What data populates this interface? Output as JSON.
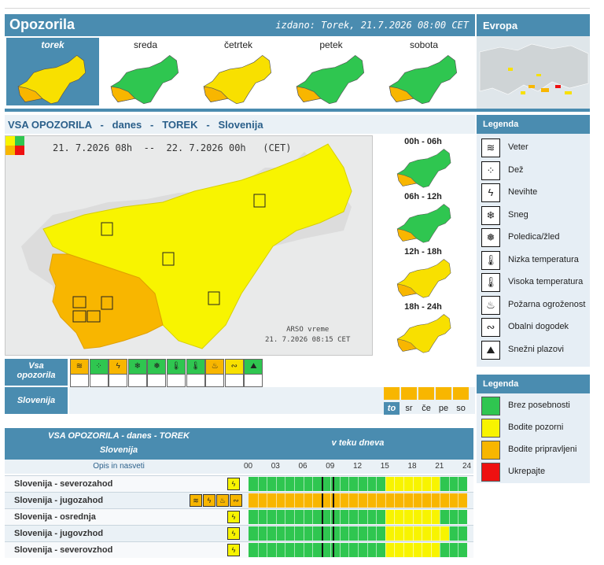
{
  "header": {
    "title": "Opozorila",
    "issued": "izdano: Torek, 21.7.2026 08:00 CET",
    "europa": "Evropa"
  },
  "days": [
    {
      "label": "torek",
      "active": true,
      "fill": "#f8e000"
    },
    {
      "label": "sreda",
      "active": false,
      "fill": "#2fc650"
    },
    {
      "label": "četrtek",
      "active": false,
      "fill": "#f8e000"
    },
    {
      "label": "petek",
      "active": false,
      "fill": "#2fc650"
    },
    {
      "label": "sobota",
      "active": false,
      "fill": "#2fc650"
    }
  ],
  "section_title": "VSA OPOZORILA   -   danes   -   TOREK   -   Slovenija",
  "map": {
    "dates": "21. 7.2026 08h  --  22. 7.2026 00h   (CET)",
    "credit_1": "ARSO vreme",
    "credit_2": "21. 7.2026  08:15 CET"
  },
  "periods": [
    {
      "label": "00h - 06h",
      "fill": "#2fc650"
    },
    {
      "label": "06h - 12h",
      "fill": "#2fc650"
    },
    {
      "label": "12h - 18h",
      "fill": "#f8e000"
    },
    {
      "label": "18h - 24h",
      "fill": "#f8e000"
    }
  ],
  "legend1": {
    "title": "Legenda",
    "items": [
      {
        "icon": "wind-icon",
        "glyph": "≋",
        "label": "Veter"
      },
      {
        "icon": "rain-icon",
        "glyph": "⁘",
        "label": "Dež"
      },
      {
        "icon": "thunderstorm-icon",
        "glyph": "ϟ",
        "label": "Nevihte"
      },
      {
        "icon": "snow-icon",
        "glyph": "❄",
        "label": "Sneg"
      },
      {
        "icon": "ice-icon",
        "glyph": "❅",
        "label": "Poledica/žled"
      },
      {
        "icon": "low-temperature-icon",
        "glyph": "🌡",
        "label": "Nizka temperatura"
      },
      {
        "icon": "high-temperature-icon",
        "glyph": "🌡",
        "label": "Visoka temperatura"
      },
      {
        "icon": "fire-icon",
        "glyph": "♨",
        "label": "Požarna ogroženost"
      },
      {
        "icon": "coastal-event-icon",
        "glyph": "∾",
        "label": "Obalni dogodek"
      },
      {
        "icon": "avalanche-icon",
        "glyph": "⛰",
        "label": "Snežni plazovi"
      }
    ]
  },
  "legend2": {
    "title": "Legenda",
    "items": [
      {
        "color": "#2fc650",
        "label": "Brez posebnosti"
      },
      {
        "color": "#f8f400",
        "label": "Bodite pozorni"
      },
      {
        "color": "#f8b600",
        "label": "Bodite pripravljeni"
      },
      {
        "color": "#ee1111",
        "label": "Ukrepajte"
      }
    ]
  },
  "icon_row": {
    "label_1": "Vsa",
    "label_2": "opozorila",
    "row2_label": "Slovenija"
  },
  "icon_row_items": [
    {
      "icon": "wind-icon",
      "glyph": "≋",
      "color": "#f8b600"
    },
    {
      "icon": "rain-icon",
      "glyph": "⁘",
      "color": "#2fc650"
    },
    {
      "icon": "thunderstorm-icon",
      "glyph": "ϟ",
      "color": "#f8b600"
    },
    {
      "icon": "snow-icon",
      "glyph": "❄",
      "color": "#2fc650"
    },
    {
      "icon": "ice-icon",
      "glyph": "❅",
      "color": "#2fc650"
    },
    {
      "icon": "low-temperature-icon",
      "glyph": "🌡",
      "color": "#2fc650"
    },
    {
      "icon": "high-temperature-icon",
      "glyph": "🌡",
      "color": "#2fc650"
    },
    {
      "icon": "fire-icon",
      "glyph": "♨",
      "color": "#f8b600"
    },
    {
      "icon": "coastal-event-icon",
      "glyph": "∾",
      "color": "#f8e000"
    },
    {
      "icon": "avalanche-icon",
      "glyph": "⛰",
      "color": "#2fc650"
    }
  ],
  "day_strip": [
    "to",
    "sr",
    "če",
    "pe",
    "so"
  ],
  "table": {
    "title_1": "VSA OPOZORILA - danes - TOREK",
    "title_2": "Slovenija",
    "during_day": "v teku dneva",
    "desc": "Opis in nasveti",
    "hours": [
      "00",
      "03",
      "06",
      "09",
      "12",
      "15",
      "18",
      "21",
      "24"
    ],
    "rows": [
      {
        "name": "Slovenija - severozahod",
        "icons": [
          "thunderstorm-icon"
        ],
        "segments": [
          {
            "from": 0,
            "to": 15,
            "color": "#2fc650"
          },
          {
            "from": 15,
            "to": 21,
            "color": "#f8f400"
          },
          {
            "from": 21,
            "to": 24,
            "color": "#2fc650"
          }
        ]
      },
      {
        "name": "Slovenija - jugozahod",
        "icons": [
          "wind-icon",
          "thunderstorm-icon",
          "fire-icon",
          "coastal-event-icon"
        ],
        "segments": [
          {
            "from": 0,
            "to": 24,
            "color": "#f8b600"
          }
        ]
      },
      {
        "name": "Slovenija - osrednja",
        "icons": [
          "thunderstorm-icon"
        ],
        "segments": [
          {
            "from": 0,
            "to": 15,
            "color": "#2fc650"
          },
          {
            "from": 15,
            "to": 21,
            "color": "#f8f400"
          },
          {
            "from": 21,
            "to": 24,
            "color": "#2fc650"
          }
        ]
      },
      {
        "name": "Slovenija - jugovzhod",
        "icons": [
          "thunderstorm-icon"
        ],
        "segments": [
          {
            "from": 0,
            "to": 15,
            "color": "#2fc650"
          },
          {
            "from": 15,
            "to": 22,
            "color": "#f8f400"
          },
          {
            "from": 22,
            "to": 24,
            "color": "#2fc650"
          }
        ]
      },
      {
        "name": "Slovenija - severovzhod",
        "icons": [
          "thunderstorm-icon"
        ],
        "segments": [
          {
            "from": 0,
            "to": 15,
            "color": "#2fc650"
          },
          {
            "from": 15,
            "to": 21,
            "color": "#f8f400"
          },
          {
            "from": 21,
            "to": 24,
            "color": "#2fc650"
          }
        ]
      }
    ],
    "now_hour": 8
  }
}
